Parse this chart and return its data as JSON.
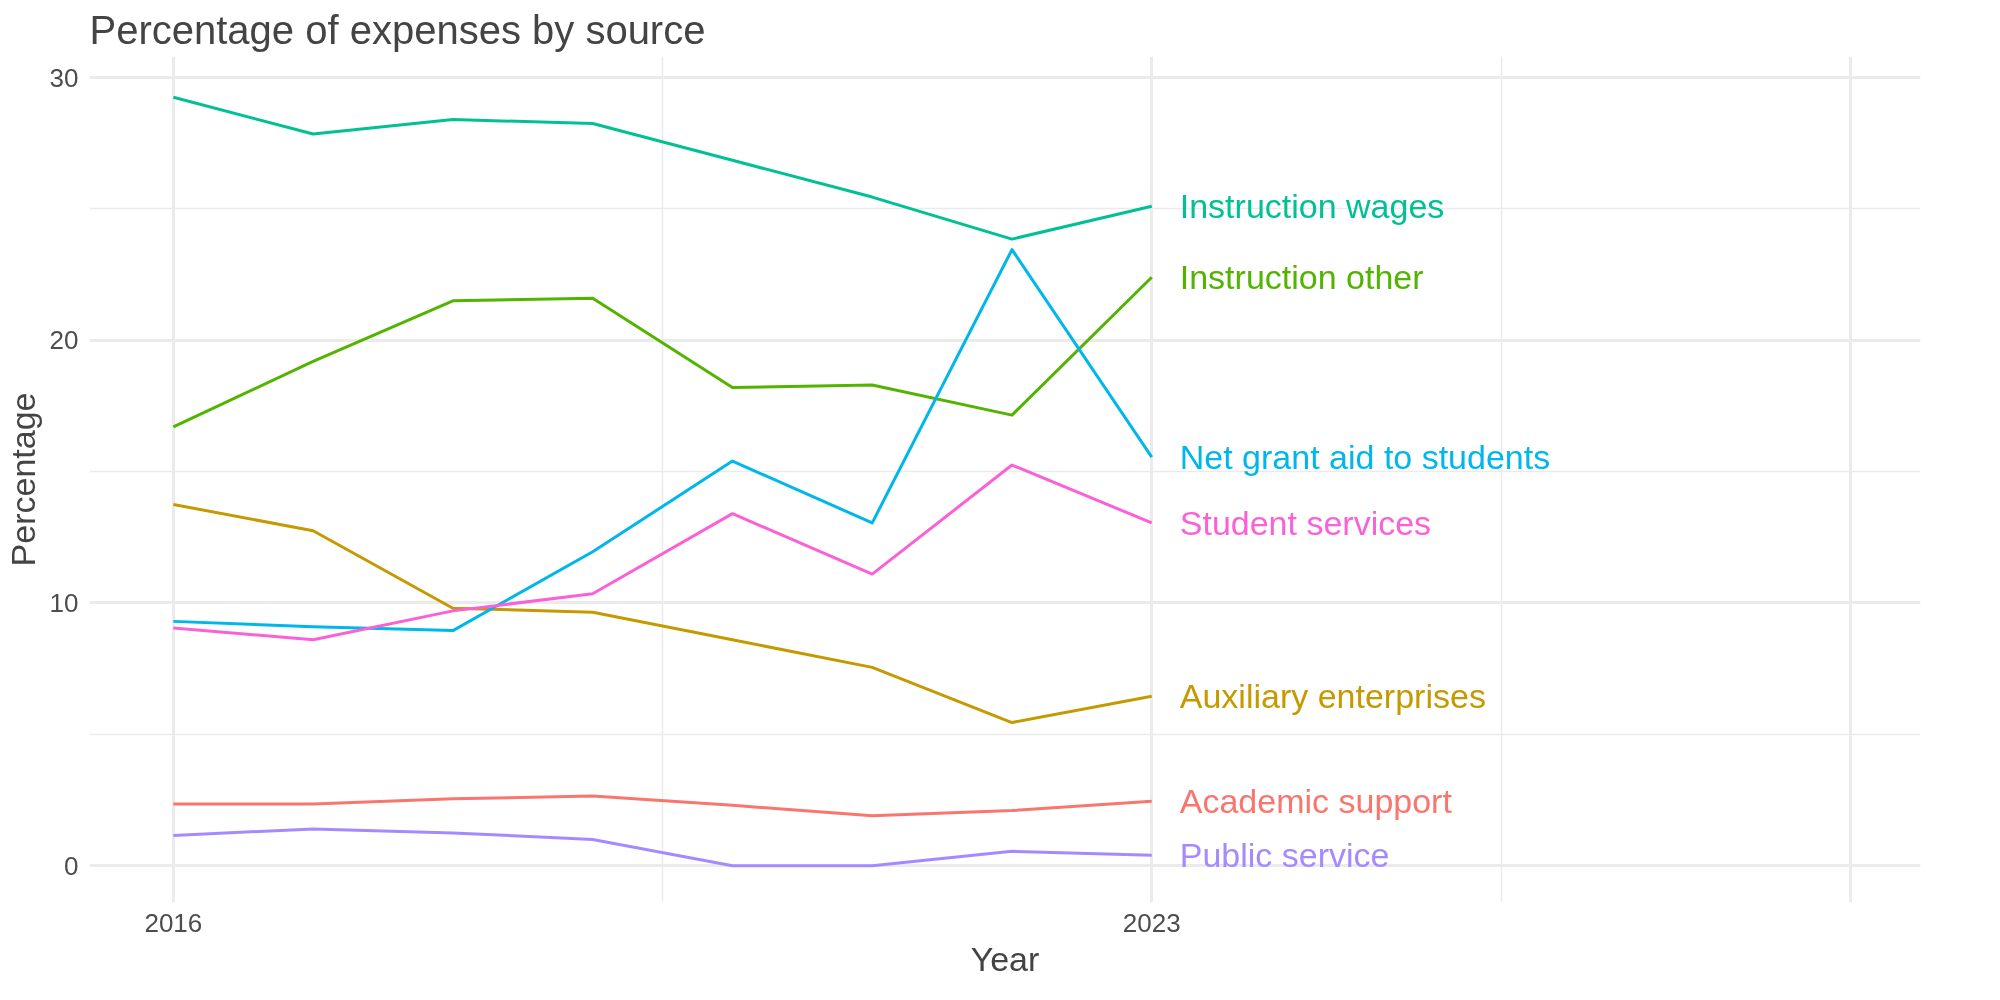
{
  "chart_data": {
    "type": "line",
    "title": "Percentage of expenses by source",
    "xlabel": "Year",
    "ylabel": "Percentage",
    "x": [
      2016,
      2017,
      2018,
      2019,
      2020,
      2021,
      2022,
      2023
    ],
    "series": [
      {
        "name": "Academic support",
        "color": "#f8766d",
        "values": [
          2.35,
          2.35,
          2.55,
          2.65,
          2.3,
          1.9,
          2.1,
          2.45
        ]
      },
      {
        "name": "Auxiliary enterprises",
        "color": "#c49a00",
        "values": [
          13.75,
          12.75,
          9.8,
          9.65,
          8.6,
          7.55,
          5.45,
          6.45
        ]
      },
      {
        "name": "Instruction other",
        "color": "#53b400",
        "values": [
          16.7,
          19.2,
          21.5,
          21.6,
          18.2,
          18.3,
          17.15,
          22.4
        ]
      },
      {
        "name": "Instruction wages",
        "color": "#00c094",
        "values": [
          29.25,
          27.85,
          28.4,
          28.25,
          26.85,
          25.45,
          23.85,
          25.1
        ]
      },
      {
        "name": "Net grant aid to students",
        "color": "#00b6eb",
        "values": [
          9.3,
          9.1,
          8.95,
          11.95,
          15.4,
          13.05,
          23.45,
          15.55
        ]
      },
      {
        "name": "Public service",
        "color": "#a58aff",
        "values": [
          1.15,
          1.4,
          1.25,
          1.0,
          0,
          0,
          0.55,
          0.4
        ]
      },
      {
        "name": "Student services",
        "color": "#fb61d7",
        "values": [
          9.05,
          8.6,
          9.7,
          10.35,
          13.4,
          11.1,
          15.25,
          13.05
        ]
      }
    ],
    "xlim": [
      2015.4,
      2028.5
    ],
    "xticks": [
      2016,
      2023,
      {
        "value": 2028,
        "label": null
      }
    ],
    "ylim": [
      -1.4,
      30.8
    ],
    "yticks": [
      0,
      10,
      20,
      30
    ],
    "grid": true,
    "legend": false,
    "line_style": "solid",
    "marker": "none"
  }
}
